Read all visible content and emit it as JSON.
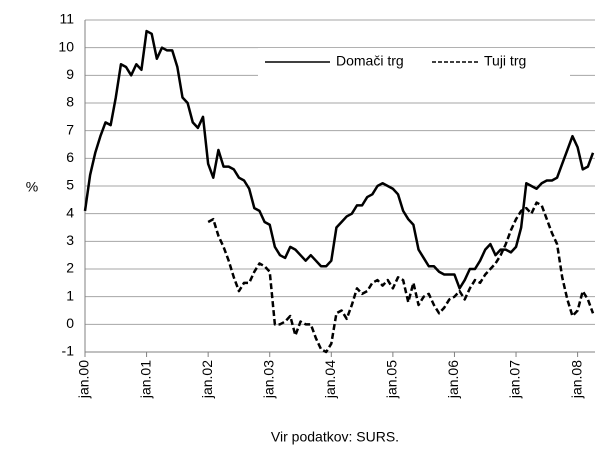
{
  "chart_data": {
    "type": "line",
    "y_label": "%",
    "source": "Vir podatkov: SURS.",
    "categories": [
      "jan.00",
      null,
      null,
      null,
      null,
      null,
      null,
      null,
      null,
      null,
      null,
      null,
      "jan.01",
      null,
      null,
      null,
      null,
      null,
      null,
      null,
      null,
      null,
      null,
      null,
      "jan.02",
      null,
      null,
      null,
      null,
      null,
      null,
      null,
      null,
      null,
      null,
      null,
      "jan.03",
      null,
      null,
      null,
      null,
      null,
      null,
      null,
      null,
      null,
      null,
      null,
      "jan.04",
      null,
      null,
      null,
      null,
      null,
      null,
      null,
      null,
      null,
      null,
      null,
      "jan.05",
      null,
      null,
      null,
      null,
      null,
      null,
      null,
      null,
      null,
      null,
      null,
      "jan.06",
      null,
      null,
      null,
      null,
      null,
      null,
      null,
      null,
      null,
      null,
      null,
      "jan.07",
      null,
      null,
      null,
      null,
      null,
      null,
      null,
      null,
      null,
      null,
      null,
      "jan.08",
      null,
      null,
      null
    ],
    "series": [
      {
        "name": "Domači trg",
        "color": "#000000",
        "dash": false,
        "values": [
          4.1,
          5.4,
          6.2,
          6.8,
          7.3,
          7.2,
          8.2,
          9.4,
          9.3,
          9.0,
          9.4,
          9.2,
          10.6,
          10.5,
          9.6,
          10.0,
          9.9,
          9.9,
          9.3,
          8.2,
          8.0,
          7.3,
          7.1,
          7.5,
          5.8,
          5.3,
          6.3,
          5.7,
          5.7,
          5.6,
          5.3,
          5.2,
          4.9,
          4.2,
          4.1,
          3.7,
          3.6,
          2.8,
          2.5,
          2.4,
          2.8,
          2.7,
          2.5,
          2.3,
          2.5,
          2.3,
          2.1,
          2.1,
          2.3,
          3.5,
          3.7,
          3.9,
          4.0,
          4.3,
          4.3,
          4.6,
          4.7,
          5.0,
          5.1,
          5.0,
          4.9,
          4.7,
          4.1,
          3.8,
          3.6,
          2.7,
          2.4,
          2.1,
          2.1,
          1.9,
          1.8,
          1.8,
          1.8,
          1.3,
          1.6,
          2.0,
          2.0,
          2.3,
          2.7,
          2.9,
          2.5,
          2.7,
          2.7,
          2.6,
          2.8,
          3.5,
          5.1,
          5.0,
          4.9,
          5.1,
          5.2,
          5.2,
          5.3,
          5.8,
          6.3,
          6.8,
          6.4,
          5.6,
          5.7,
          6.2
        ]
      },
      {
        "name": "Tuji trg",
        "color": "#000000",
        "dash": true,
        "values": [
          null,
          null,
          null,
          null,
          null,
          null,
          null,
          null,
          null,
          null,
          null,
          null,
          null,
          null,
          null,
          null,
          null,
          null,
          null,
          null,
          null,
          null,
          null,
          null,
          3.7,
          3.8,
          3.2,
          2.8,
          2.3,
          1.7,
          1.2,
          1.5,
          1.5,
          1.9,
          2.2,
          2.1,
          1.9,
          0.0,
          0.0,
          0.1,
          0.3,
          -0.4,
          0.1,
          0.0,
          0.0,
          -0.5,
          -0.9,
          -1.0,
          -0.7,
          0.4,
          0.5,
          0.2,
          0.7,
          1.3,
          1.1,
          1.2,
          1.5,
          1.6,
          1.4,
          1.6,
          1.3,
          1.7,
          1.6,
          0.8,
          1.5,
          0.7,
          1.0,
          1.1,
          0.7,
          0.4,
          0.6,
          0.9,
          1.0,
          1.2,
          0.9,
          1.3,
          1.6,
          1.5,
          1.8,
          2.0,
          2.2,
          2.5,
          2.9,
          3.4,
          3.8,
          4.1,
          4.2,
          4.0,
          4.4,
          4.3,
          3.8,
          3.3,
          2.9,
          1.7,
          0.9,
          0.3,
          0.5,
          1.2,
          0.9,
          0.4
        ]
      }
    ],
    "ylim": [
      -1,
      11
    ],
    "yticks": [
      -1,
      0,
      1,
      2,
      3,
      4,
      5,
      6,
      7,
      8,
      9,
      10,
      11
    ],
    "grid": true,
    "legend": "top-right"
  }
}
